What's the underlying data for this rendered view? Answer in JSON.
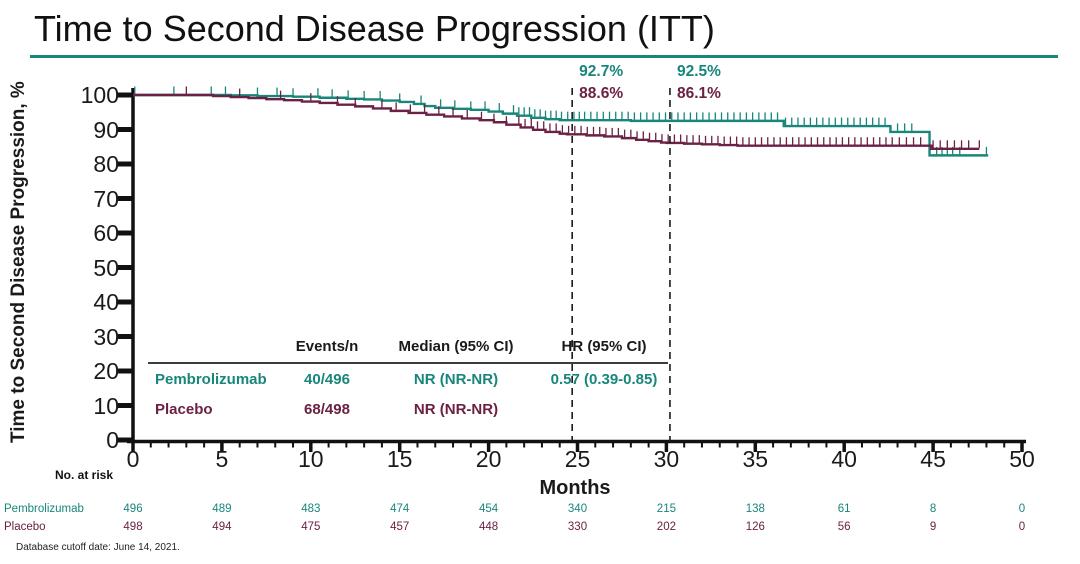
{
  "slide": {
    "title": "Time to Second Disease Progression (ITT)",
    "footnote": "Database cutoff date: June 14, 2021."
  },
  "colors": {
    "pembrolizumab": "#18867B",
    "placebo": "#6B2143",
    "axis": "#111111",
    "reference_line": "#1a1a1a",
    "title_rule": "#18867B"
  },
  "chart_data": {
    "type": "line",
    "subtype": "kaplan-meier-step",
    "title": "Time to Second Disease Progression (ITT)",
    "xlabel": "Months",
    "ylabel": "Time to Second Disease Progression, %",
    "xlim": [
      0,
      50
    ],
    "ylim": [
      0,
      100
    ],
    "x_major_ticks": [
      0,
      5,
      10,
      15,
      20,
      25,
      30,
      35,
      40,
      45,
      50
    ],
    "x_minor_step": 1,
    "y_ticks": [
      100,
      90,
      80,
      70,
      60,
      50,
      40,
      30,
      20,
      10,
      0
    ],
    "grid": false,
    "series": [
      {
        "name": "Pembrolizumab",
        "color": "#18867B",
        "steps": [
          [
            0,
            100
          ],
          [
            5.5,
            99.9
          ],
          [
            7,
            99.7
          ],
          [
            9,
            99.5
          ],
          [
            10.5,
            99.2
          ],
          [
            12,
            98.9
          ],
          [
            13,
            98.7
          ],
          [
            14,
            98.4
          ],
          [
            15,
            98.0
          ],
          [
            15.8,
            97.4
          ],
          [
            16.4,
            96.8
          ],
          [
            17,
            96.3
          ],
          [
            18,
            96.0
          ],
          [
            19,
            95.7
          ],
          [
            20,
            95.2
          ],
          [
            20.8,
            94.6
          ],
          [
            21.6,
            94.0
          ],
          [
            22.4,
            93.4
          ],
          [
            23.2,
            93.0
          ],
          [
            24,
            92.7
          ],
          [
            28,
            92.5
          ],
          [
            36.6,
            91.0
          ],
          [
            42.6,
            89.3
          ],
          [
            44.8,
            82.5
          ],
          [
            48.1,
            82.5
          ]
        ],
        "censor_ticks": [
          0.1,
          2.3,
          4.4,
          5.2,
          7.0,
          8.1,
          9.0,
          10.4,
          11.2,
          12.1,
          13.0,
          13.9,
          15.0,
          16.2,
          17.3,
          18.1,
          19.0,
          19.8,
          20.6,
          21.4,
          21.7,
          22.0,
          22.3,
          22.6,
          22.9,
          23.2,
          23.5,
          23.8,
          24.1,
          24.45,
          24.8,
          25.1,
          25.4,
          25.75,
          26.1,
          26.45,
          26.8,
          27.15,
          27.5,
          27.85,
          28.2,
          28.55,
          28.9,
          29.25,
          29.6,
          29.95,
          30.3,
          30.65,
          31.0,
          31.35,
          31.7,
          32.05,
          32.4,
          32.75,
          33.1,
          33.45,
          33.8,
          34.15,
          34.5,
          34.85,
          35.2,
          35.55,
          35.9,
          36.25,
          36.7,
          37.05,
          37.4,
          37.75,
          38.1,
          38.45,
          38.8,
          39.15,
          39.5,
          39.85,
          40.2,
          40.55,
          40.9,
          41.25,
          41.6,
          41.95,
          42.3,
          43.0,
          43.4,
          43.8,
          45.2,
          45.5,
          45.8,
          46.1,
          46.5,
          48.0
        ]
      },
      {
        "name": "Placebo",
        "color": "#6B2143",
        "steps": [
          [
            0,
            100
          ],
          [
            4.5,
            99.7
          ],
          [
            5.5,
            99.4
          ],
          [
            6.5,
            99.1
          ],
          [
            7.5,
            98.8
          ],
          [
            8.5,
            98.5
          ],
          [
            9.5,
            98.1
          ],
          [
            10.5,
            97.7
          ],
          [
            11.5,
            97.2
          ],
          [
            12.5,
            96.7
          ],
          [
            13.5,
            96.1
          ],
          [
            14.5,
            95.4
          ],
          [
            15.5,
            94.8
          ],
          [
            16.5,
            94.3
          ],
          [
            17.5,
            93.8
          ],
          [
            18.5,
            93.2
          ],
          [
            19.5,
            92.7
          ],
          [
            20.3,
            92.1
          ],
          [
            21,
            91.4
          ],
          [
            21.8,
            90.6
          ],
          [
            22.5,
            89.9
          ],
          [
            23.2,
            89.3
          ],
          [
            24,
            88.8
          ],
          [
            24.4,
            88.6
          ],
          [
            25.5,
            88.3
          ],
          [
            26.5,
            88.0
          ],
          [
            27.5,
            87.5
          ],
          [
            28.3,
            87.0
          ],
          [
            29,
            86.6
          ],
          [
            29.7,
            86.2
          ],
          [
            30,
            86.1
          ],
          [
            31,
            85.9
          ],
          [
            32,
            85.7
          ],
          [
            33,
            85.5
          ],
          [
            34,
            85.3
          ],
          [
            44.9,
            84.4
          ],
          [
            47.6,
            84.4
          ]
        ],
        "censor_ticks": [
          3.0,
          6.0,
          8.3,
          10.0,
          11.5,
          12.5,
          14.0,
          14.8,
          15.6,
          16.4,
          17.2,
          18.0,
          18.8,
          19.6,
          20.3,
          21.0,
          21.7,
          22.05,
          22.4,
          22.75,
          23.1,
          23.45,
          23.8,
          24.15,
          24.5,
          24.85,
          25.2,
          25.55,
          25.9,
          26.25,
          26.6,
          26.95,
          27.3,
          27.65,
          28.0,
          28.35,
          28.7,
          29.05,
          29.4,
          29.75,
          30.1,
          30.45,
          30.8,
          31.15,
          31.5,
          31.85,
          32.2,
          32.55,
          32.9,
          33.25,
          33.6,
          33.95,
          34.3,
          34.65,
          35.0,
          35.35,
          35.7,
          36.05,
          36.4,
          36.75,
          37.1,
          37.45,
          37.8,
          38.15,
          38.5,
          38.85,
          39.2,
          39.55,
          39.9,
          40.25,
          40.6,
          40.95,
          41.3,
          41.65,
          42.0,
          42.35,
          42.7,
          43.1,
          43.5,
          43.9,
          44.3,
          45.0,
          45.4,
          45.8,
          46.2,
          46.6,
          47.0,
          47.6
        ]
      }
    ],
    "reference_lines": [
      {
        "month": 24.7,
        "labels": [
          {
            "text": "92.7%",
            "series": "Pembrolizumab"
          },
          {
            "text": "88.6%",
            "series": "Placebo"
          }
        ]
      },
      {
        "month": 30.2,
        "labels": [
          {
            "text": "92.5%",
            "series": "Pembrolizumab"
          },
          {
            "text": "86.1%",
            "series": "Placebo"
          }
        ]
      }
    ]
  },
  "summary_table": {
    "headers": {
      "events": "Events/n",
      "median": "Median (95% CI)",
      "hr": "HR (95% CI)"
    },
    "rows": [
      {
        "name": "Pembrolizumab",
        "events": "40/496",
        "median": "NR (NR-NR)",
        "hr": "0.57 (0.39-0.85)"
      },
      {
        "name": "Placebo",
        "events": "68/498",
        "median": "NR (NR-NR)",
        "hr": ""
      }
    ]
  },
  "risk_table": {
    "caption": "No. at risk",
    "months": [
      0,
      5,
      10,
      15,
      20,
      25,
      30,
      35,
      40,
      45,
      50
    ],
    "rows": [
      {
        "name": "Pembrolizumab",
        "values": [
          496,
          489,
          483,
          474,
          454,
          340,
          215,
          138,
          61,
          8,
          0
        ]
      },
      {
        "name": "Placebo",
        "values": [
          498,
          494,
          475,
          457,
          448,
          330,
          202,
          126,
          56,
          9,
          0
        ]
      }
    ]
  }
}
